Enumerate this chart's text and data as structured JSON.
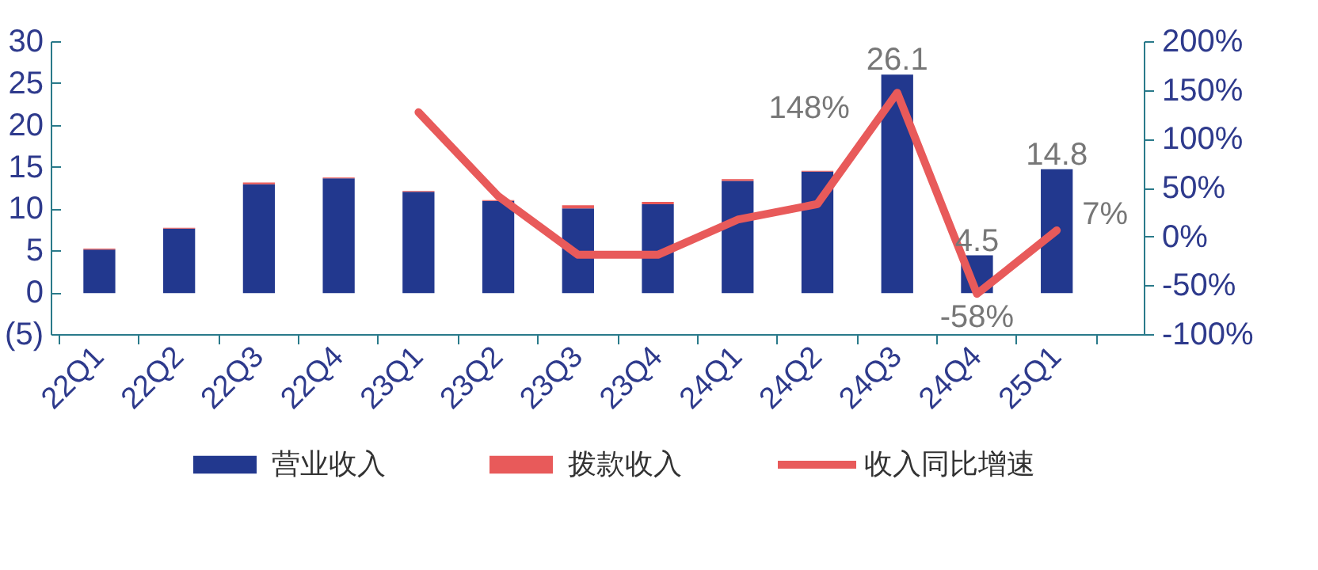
{
  "chart_data": {
    "type": "bar",
    "stacked": true,
    "categories": [
      "22Q1",
      "22Q2",
      "22Q3",
      "22Q4",
      "23Q1",
      "23Q2",
      "23Q3",
      "23Q4",
      "24Q1",
      "24Q2",
      "24Q3",
      "24Q4",
      "25Q1"
    ],
    "series": [
      {
        "name": "营业收入",
        "color": "#22388e",
        "values": [
          5.2,
          7.7,
          13.0,
          13.7,
          12.1,
          11.0,
          10.1,
          10.6,
          13.4,
          14.5,
          26.1,
          4.5,
          14.8
        ],
        "value_labels": [
          null,
          null,
          null,
          null,
          null,
          null,
          null,
          null,
          null,
          null,
          "26.1",
          "4.5",
          "14.8"
        ]
      },
      {
        "name": "拨款收入",
        "color": "#e85a5a",
        "values": [
          0.1,
          0.1,
          0.2,
          0.1,
          0.1,
          0.1,
          0.4,
          0.3,
          0.2,
          0.1,
          0,
          0,
          0
        ]
      },
      {
        "name": "收入同比增速",
        "type": "line",
        "axis": "y2",
        "color": "#e85a5a",
        "values": [
          null,
          null,
          null,
          null,
          128,
          42,
          -18,
          -18,
          18,
          34,
          148,
          -58,
          7
        ],
        "value_labels": [
          null,
          null,
          null,
          null,
          null,
          null,
          null,
          null,
          null,
          null,
          "148%",
          "-58%",
          "7%"
        ]
      }
    ],
    "ylim": [
      -5,
      30
    ],
    "yticks": [
      {
        "value": -5,
        "label": "(5)"
      },
      0,
      5,
      10,
      15,
      20,
      25,
      30
    ],
    "y2lim": [
      -100,
      200
    ],
    "y2ticks": [
      {
        "value": -100,
        "label": "-100%"
      },
      {
        "value": -50,
        "label": "-50%"
      },
      {
        "value": 0,
        "label": "0%"
      },
      {
        "value": 50,
        "label": "50%"
      },
      {
        "value": 100,
        "label": "100%"
      },
      {
        "value": 150,
        "label": "150%"
      },
      {
        "value": 200,
        "label": "200%"
      }
    ],
    "grid": false,
    "legend": "bottom"
  }
}
